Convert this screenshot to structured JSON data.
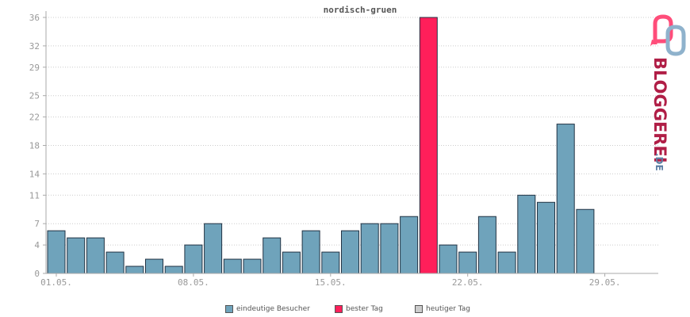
{
  "chart_data": {
    "type": "bar",
    "title": "nordisch-gruen",
    "x_tick_labels": [
      "01.05.",
      "08.05.",
      "15.05.",
      "22.05.",
      "29.05."
    ],
    "y_ticks": [
      0,
      4,
      7,
      11,
      14,
      18,
      22,
      25,
      29,
      32,
      36
    ],
    "ylim": [
      0,
      36
    ],
    "grid": true,
    "values": [
      6,
      5,
      5,
      3,
      1,
      2,
      1,
      4,
      7,
      2,
      2,
      5,
      3,
      6,
      3,
      6,
      7,
      7,
      8,
      36,
      4,
      3,
      8,
      3,
      11,
      10,
      21,
      9,
      0,
      0,
      0
    ],
    "best_day_index": 19,
    "colors": {
      "visitors": "#6fa3bb",
      "best": "#ff1f5a",
      "today": "#cccccc",
      "bar_stroke": "#223344"
    },
    "legend": [
      {
        "label": "eindeutige Besucher",
        "color": "#6fa3bb"
      },
      {
        "label": "bester Tag",
        "color": "#ff1f5a"
      },
      {
        "label": "heutiger Tag",
        "color": "#cccccc"
      }
    ]
  },
  "logo": {
    "text_main": "BLOGGEREI",
    "text_suffix": ".DE",
    "icon": "bloggerei-logo-icon",
    "color_main": "#b01e46",
    "color_suffix": "#5d7fa4"
  }
}
